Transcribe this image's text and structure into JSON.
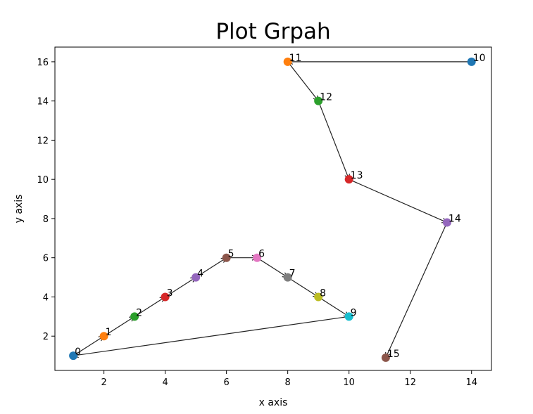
{
  "chart_data": {
    "type": "scatter",
    "title": "Plot Grpah",
    "xlabel": "x axis",
    "ylabel": "y axis",
    "xlim": [
      0.4,
      14.65
    ],
    "ylim": [
      0.25,
      16.75
    ],
    "xticks": [
      2,
      4,
      6,
      8,
      10,
      12,
      14
    ],
    "yticks": [
      2,
      4,
      6,
      8,
      10,
      12,
      14,
      16
    ],
    "grid": false,
    "points": [
      {
        "label": "0",
        "x": 1,
        "y": 1,
        "color": "#1f77b4"
      },
      {
        "label": "1",
        "x": 2,
        "y": 2,
        "color": "#ff7f0e"
      },
      {
        "label": "2",
        "x": 3,
        "y": 3,
        "color": "#2ca02c"
      },
      {
        "label": "3",
        "x": 4,
        "y": 4,
        "color": "#d62728"
      },
      {
        "label": "4",
        "x": 5,
        "y": 5,
        "color": "#9467bd"
      },
      {
        "label": "5",
        "x": 6,
        "y": 6,
        "color": "#8c564b"
      },
      {
        "label": "6",
        "x": 7,
        "y": 6,
        "color": "#e377c2"
      },
      {
        "label": "7",
        "x": 8,
        "y": 5,
        "color": "#7f7f7f"
      },
      {
        "label": "8",
        "x": 9,
        "y": 4,
        "color": "#bcbd22"
      },
      {
        "label": "9",
        "x": 10,
        "y": 3,
        "color": "#17becf"
      },
      {
        "label": "10",
        "x": 14,
        "y": 16,
        "color": "#1f77b4"
      },
      {
        "label": "11",
        "x": 8,
        "y": 16,
        "color": "#ff7f0e"
      },
      {
        "label": "12",
        "x": 9,
        "y": 14,
        "color": "#2ca02c"
      },
      {
        "label": "13",
        "x": 10,
        "y": 10,
        "color": "#d62728"
      },
      {
        "label": "14",
        "x": 13.2,
        "y": 7.8,
        "color": "#9467bd"
      },
      {
        "label": "15",
        "x": 11.2,
        "y": 0.9,
        "color": "#8c564b"
      }
    ],
    "arrows": [
      {
        "from": "0",
        "to": "1"
      },
      {
        "from": "1",
        "to": "2"
      },
      {
        "from": "2",
        "to": "3"
      },
      {
        "from": "3",
        "to": "4"
      },
      {
        "from": "4",
        "to": "5"
      },
      {
        "from": "5",
        "to": "6"
      },
      {
        "from": "6",
        "to": "7"
      },
      {
        "from": "7",
        "to": "8"
      },
      {
        "from": "8",
        "to": "9"
      },
      {
        "from": "9",
        "to": "0"
      },
      {
        "from": "10",
        "to": "11"
      },
      {
        "from": "11",
        "to": "12"
      },
      {
        "from": "12",
        "to": "13"
      },
      {
        "from": "13",
        "to": "14"
      },
      {
        "from": "14",
        "to": "15"
      }
    ]
  }
}
